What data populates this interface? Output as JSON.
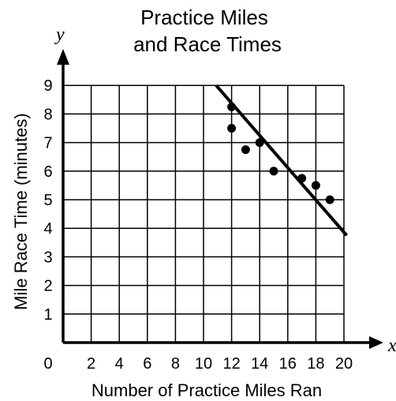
{
  "chart_data": {
    "type": "scatter",
    "title_line1": "Practice Miles",
    "title_line2": "and Race Times",
    "xlabel": "Number of Practice Miles Ran",
    "ylabel": "Mile Race Time (minutes)",
    "x_axis_var": "x",
    "y_axis_var": "y",
    "origin_label": "0",
    "xlim": [
      0,
      20
    ],
    "ylim": [
      0,
      9
    ],
    "x_ticks": [
      "2",
      "4",
      "6",
      "8",
      "10",
      "12",
      "14",
      "16",
      "18",
      "20"
    ],
    "y_ticks": [
      "1",
      "2",
      "3",
      "4",
      "5",
      "6",
      "7",
      "8",
      "9"
    ],
    "grid": true,
    "points": [
      {
        "x": 12,
        "y": 8.25
      },
      {
        "x": 12,
        "y": 7.5
      },
      {
        "x": 13,
        "y": 6.75
      },
      {
        "x": 14,
        "y": 7.0
      },
      {
        "x": 15,
        "y": 6.0
      },
      {
        "x": 17,
        "y": 5.75
      },
      {
        "x": 18,
        "y": 5.5
      },
      {
        "x": 19,
        "y": 5.0
      }
    ],
    "trend_line": {
      "x1": 10.9,
      "y1": 9.0,
      "x2": 20.2,
      "y2": 3.75
    }
  }
}
